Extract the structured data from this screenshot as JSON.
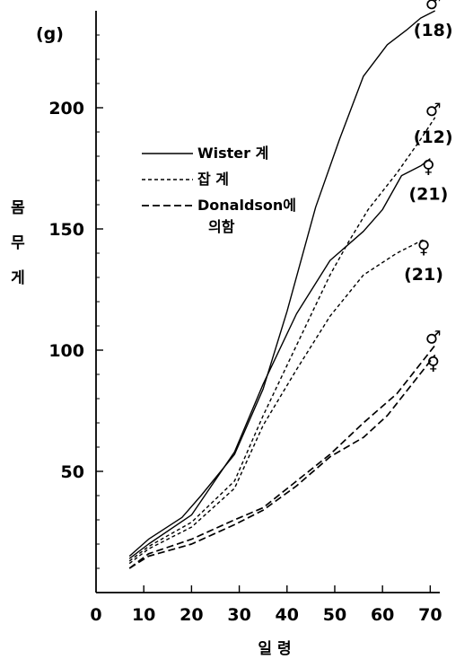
{
  "chart_data": {
    "type": "line",
    "title": "",
    "y_unit": "(g)",
    "xlabel": "일 령",
    "ylabel": [
      "몸",
      "무",
      "게"
    ],
    "xlim": [
      0,
      72
    ],
    "ylim": [
      0,
      240
    ],
    "xticks": [
      "0",
      "10",
      "20",
      "30",
      "40",
      "50",
      "60",
      "70"
    ],
    "yticks": [
      "50",
      "100",
      "150",
      "200"
    ],
    "grid": false,
    "legend_position": "top-left",
    "legend": [
      {
        "label": "Wister 계",
        "style": "solid"
      },
      {
        "label": "잡  계",
        "style": "dashed-fine"
      },
      {
        "label": "Donaldson에\n의함",
        "style": "dashed"
      }
    ],
    "series": [
      {
        "group": "Wister 계",
        "sex": "♂",
        "n": "(18)",
        "style": "solid",
        "x": [
          7,
          11,
          18,
          22,
          29,
          35,
          40,
          46,
          51,
          56,
          61,
          65,
          68,
          71
        ],
        "y": [
          15,
          22,
          31,
          40,
          57,
          84,
          116,
          159,
          187,
          213,
          226,
          232,
          237,
          240
        ]
      },
      {
        "group": "Wister 계",
        "sex": "♀",
        "n": "(21)",
        "style": "solid",
        "x": [
          7,
          11,
          20,
          29,
          35,
          42,
          49,
          56,
          60,
          64,
          68,
          70
        ],
        "y": [
          14,
          20,
          32,
          58,
          86,
          115,
          137,
          149,
          158,
          172,
          176,
          179
        ]
      },
      {
        "group": "잡  계",
        "sex": "♂",
        "n": "(12)",
        "style": "dashed-fine",
        "x": [
          7,
          11,
          20,
          29,
          35,
          42,
          49,
          53,
          57,
          63,
          68,
          71
        ],
        "y": [
          13,
          19,
          29,
          46,
          73,
          102,
          131,
          145,
          158,
          173,
          187,
          196
        ]
      },
      {
        "group": "잡  계",
        "sex": "♀",
        "n": "(21)",
        "style": "dashed-fine",
        "x": [
          7,
          11,
          20,
          29,
          35,
          42,
          49,
          56,
          63,
          69
        ],
        "y": [
          12,
          18,
          27,
          43,
          69,
          92,
          114,
          131,
          140,
          146
        ]
      },
      {
        "group": "Donaldson에 의함",
        "sex": "♂",
        "style": "dashed",
        "x": [
          7,
          11,
          20,
          29,
          35,
          42,
          49,
          56,
          63,
          71
        ],
        "y": [
          10,
          16,
          22,
          30,
          35,
          46,
          57,
          70,
          82,
          102
        ]
      },
      {
        "group": "Donaldson에 의함",
        "sex": "♀",
        "style": "dashed",
        "x": [
          7,
          11,
          20,
          29,
          35,
          42,
          49,
          56,
          61,
          65,
          71
        ],
        "y": [
          10,
          15,
          20,
          28,
          34,
          44,
          56,
          64,
          73,
          83,
          98
        ]
      }
    ]
  }
}
